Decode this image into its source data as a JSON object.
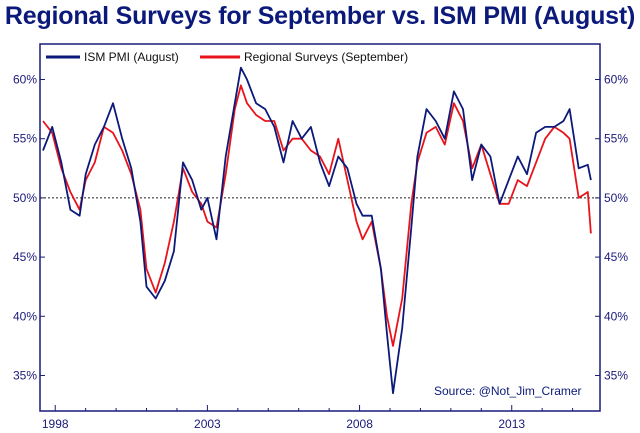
{
  "chart_data": {
    "type": "line",
    "title": "Regional Surveys for September vs. ISM PMI (August)",
    "xlabel": "",
    "ylabel": "",
    "xlim": [
      1997.5,
      2015.9
    ],
    "ylim": [
      32,
      63
    ],
    "xticks": [
      "1998",
      "2003",
      "2008",
      "2013"
    ],
    "xtick_values": [
      1998,
      2003,
      2008,
      2013
    ],
    "yticks_left": [
      "60%",
      "55%",
      "50%",
      "45%",
      "40%",
      "35%"
    ],
    "yticks_right": [
      "60%",
      "55%",
      "50%",
      "45%",
      "40%",
      "35%"
    ],
    "ytick_values": [
      60,
      55,
      50,
      45,
      40,
      35
    ],
    "reference_line": 50,
    "legend_position": "top-left",
    "source": "Source: @Not_Jim_Cramer",
    "colors": {
      "ism": "#0b1a7a",
      "regional": "#e8141b",
      "title": "#0b1a7a",
      "axis": "#1a1a7a"
    },
    "series": [
      {
        "name": "ISM PMI (August)",
        "color": "#0b1a7a",
        "x": [
          1997.6,
          1997.9,
          1998.2,
          1998.5,
          1998.8,
          1999.0,
          1999.3,
          1999.6,
          1999.9,
          2000.2,
          2000.5,
          2000.8,
          2001.0,
          2001.3,
          2001.6,
          2001.9,
          2002.2,
          2002.5,
          2002.8,
          2003.0,
          2003.3,
          2003.6,
          2003.9,
          2004.1,
          2004.3,
          2004.6,
          2004.9,
          2005.2,
          2005.5,
          2005.8,
          2006.1,
          2006.4,
          2006.7,
          2007.0,
          2007.3,
          2007.6,
          2007.9,
          2008.1,
          2008.4,
          2008.7,
          2008.9,
          2009.1,
          2009.4,
          2009.7,
          2009.9,
          2010.2,
          2010.5,
          2010.8,
          2011.1,
          2011.4,
          2011.7,
          2012.0,
          2012.3,
          2012.6,
          2012.9,
          2013.2,
          2013.5,
          2013.8,
          2014.1,
          2014.4,
          2014.7,
          2014.9,
          2015.2,
          2015.5,
          2015.6
        ],
        "values": [
          54,
          56,
          53,
          49,
          48.5,
          52,
          54.5,
          56,
          58,
          55,
          52.5,
          48,
          42.5,
          41.5,
          43,
          45.5,
          53,
          51.5,
          49,
          50,
          46.5,
          53.5,
          58,
          61,
          60,
          58,
          57.5,
          56,
          53,
          56.5,
          55,
          56,
          53,
          51,
          53.5,
          52.5,
          49.5,
          48.5,
          48.5,
          44,
          38.5,
          33.5,
          39,
          47.5,
          53.5,
          57.5,
          56.5,
          55,
          59,
          57.5,
          51.5,
          54.5,
          53.5,
          49.5,
          51.5,
          53.5,
          52,
          55.5,
          56,
          56,
          56.5,
          57.5,
          52.5,
          52.8,
          51.5
        ]
      },
      {
        "name": "Regional Surveys (September)",
        "color": "#e8141b",
        "x": [
          1997.6,
          1997.9,
          1998.2,
          1998.5,
          1998.8,
          1999.0,
          1999.3,
          1999.6,
          1999.9,
          2000.2,
          2000.5,
          2000.8,
          2001.0,
          2001.3,
          2001.6,
          2001.9,
          2002.2,
          2002.5,
          2002.8,
          2003.0,
          2003.3,
          2003.6,
          2003.9,
          2004.1,
          2004.3,
          2004.6,
          2004.9,
          2005.2,
          2005.5,
          2005.8,
          2006.1,
          2006.4,
          2006.7,
          2007.0,
          2007.3,
          2007.6,
          2007.9,
          2008.1,
          2008.4,
          2008.7,
          2008.9,
          2009.1,
          2009.4,
          2009.7,
          2009.9,
          2010.2,
          2010.5,
          2010.8,
          2011.1,
          2011.4,
          2011.7,
          2012.0,
          2012.3,
          2012.6,
          2012.9,
          2013.2,
          2013.5,
          2013.8,
          2014.1,
          2014.4,
          2014.7,
          2014.9,
          2015.2,
          2015.5,
          2015.6
        ],
        "values": [
          56.5,
          55.5,
          52.5,
          50.5,
          49,
          51.5,
          53,
          56,
          55.5,
          54,
          52,
          49,
          44,
          42,
          44.5,
          48,
          52.5,
          50.5,
          49.5,
          48,
          47.5,
          52,
          57.5,
          59.5,
          58,
          57,
          56.5,
          56.5,
          54,
          55,
          55,
          54,
          53.5,
          52,
          55,
          51.5,
          48,
          46.5,
          48,
          44,
          40,
          37.5,
          41.5,
          49.5,
          53,
          55.5,
          56,
          54.5,
          58,
          56.5,
          52.5,
          54.5,
          52,
          49.5,
          49.5,
          51.5,
          51,
          53,
          55,
          56,
          55.5,
          55,
          50,
          50.5,
          47
        ]
      }
    ]
  }
}
